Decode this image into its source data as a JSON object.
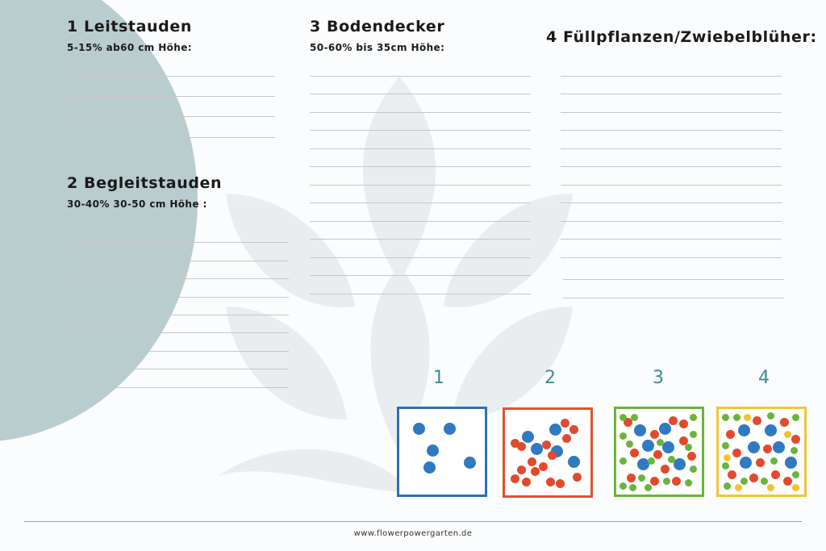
{
  "sections": [
    {
      "title": "1 Leitstauden",
      "subtitle": "5-15%  ab60 cm Höhe:"
    },
    {
      "title": "2 Begleitstauden",
      "subtitle": "30-40% 30-50 cm Höhe :"
    },
    {
      "title": "3 Bodendecker",
      "subtitle": "50-60% bis 35cm Höhe:"
    },
    {
      "title": "4 Füllpflanzen/Zwiebelblüher:",
      "subtitle": ""
    }
  ],
  "legend": {
    "labels": [
      "1",
      "2",
      "3",
      "4"
    ],
    "border_colors": [
      "#2f6fb3",
      "#e0542f",
      "#6ab43c",
      "#f3c43a"
    ]
  },
  "colors": {
    "circle": "#b9cdce",
    "accent": "#3d8a92",
    "blue_dot": "#2f7ac0",
    "red_dot": "#e24a2e",
    "green_dot": "#6ab43c",
    "yellow_dot": "#f5c130"
  },
  "footer": {
    "url": "www.flowerpowergarten.de"
  }
}
